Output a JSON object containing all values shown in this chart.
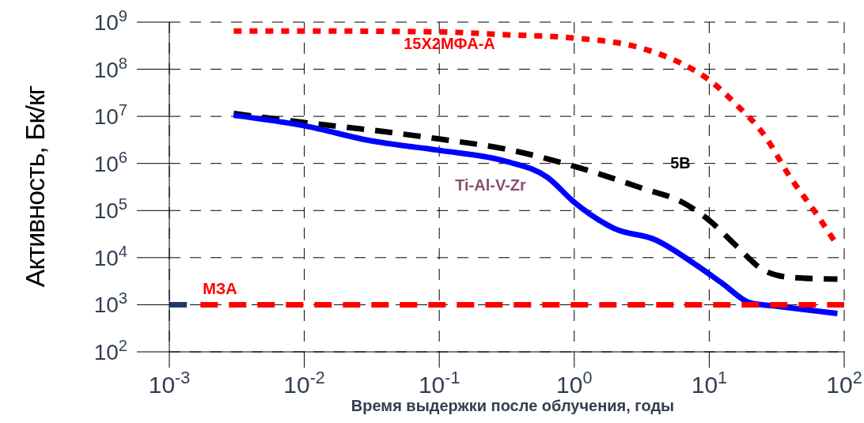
{
  "chart_data": {
    "type": "line",
    "xlabel": "Время выдержки после облучения, годы",
    "ylabel": "Активность, Бк/кг",
    "log": "xy",
    "grid": true,
    "legend": false,
    "marker": "none",
    "xlim": [
      0.001,
      100
    ],
    "ylim": [
      100,
      1000000000
    ],
    "xticks": [
      {
        "value": 0.001,
        "label": "10$^{-3}$"
      },
      {
        "value": 0.01,
        "label": "10$^{-2}$"
      },
      {
        "value": 0.1,
        "label": "10$^{-1}$"
      },
      {
        "value": 1,
        "label": "10$^{0}$"
      },
      {
        "value": 10,
        "label": "10$^{1}$"
      },
      {
        "value": 100,
        "label": "10$^{2}$"
      }
    ],
    "yticks": [
      {
        "value": 100,
        "label": "10$^{2}$"
      },
      {
        "value": 1000,
        "label": "10$^{3}$"
      },
      {
        "value": 10000,
        "label": "10$^{4}$"
      },
      {
        "value": 100000,
        "label": "10$^{5}$"
      },
      {
        "value": 1000000,
        "label": "10$^{6}$"
      },
      {
        "value": 10000000,
        "label": "10$^{7}$"
      },
      {
        "value": 100000000,
        "label": "10$^{8}$"
      },
      {
        "value": 1000000000,
        "label": "10$^{9}$"
      }
    ],
    "series": [
      {
        "name": "15X2МФА-А",
        "color": "#ff0000",
        "line_style": "dotted",
        "x": [
          0.003,
          0.01,
          0.1,
          0.316,
          1,
          3.16,
          6.31,
          10,
          15.8,
          25.1,
          39.8,
          63.1,
          89.1
        ],
        "values": [
          650000000,
          650000000,
          620000000,
          540000000,
          460000000,
          280000000,
          130000000,
          59000000,
          18000000,
          4300000,
          510000,
          80000,
          18000
        ]
      },
      {
        "name": "5B",
        "color": "#000000",
        "line_style": "dashed",
        "x": [
          0.003,
          0.01,
          0.0316,
          0.1,
          0.316,
          1,
          3.16,
          6.31,
          10,
          15.8,
          25.1,
          39.8,
          89.1
        ],
        "values": [
          11500000,
          7400000,
          5100000,
          3300000,
          2000000,
          870000,
          300000,
          150000,
          62000,
          18000,
          5500,
          3800,
          3500
        ]
      },
      {
        "name": "Ti-Al-V-Zr",
        "color": "#0000ff",
        "line_style": "solid",
        "x": [
          0.003,
          0.01,
          0.0316,
          0.1,
          0.316,
          0.631,
          1,
          2,
          3.98,
          7.94,
          12.6,
          20,
          31.6,
          89.1
        ],
        "values": [
          10500000,
          6300000,
          3000000,
          1900000,
          1100000,
          510000,
          150000,
          41000,
          24000,
          7100,
          2800,
          1100,
          930,
          650
        ]
      },
      {
        "name": "МЗА",
        "color": "#ff0000",
        "line_style": "dashed",
        "x": [
          0.0017,
          100
        ],
        "values": [
          1000,
          1000
        ]
      },
      {
        "color": "#1f3864",
        "line_style": "solid",
        "x": [
          0.001,
          0.00135
        ],
        "values": [
          1000,
          1000
        ]
      }
    ]
  }
}
